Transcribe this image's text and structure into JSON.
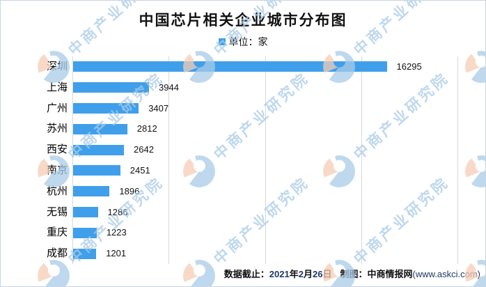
{
  "title": "中国芯片相关企业城市分布图",
  "legend": {
    "label": "单位：家"
  },
  "chart_data": {
    "type": "bar",
    "orientation": "horizontal",
    "title": "中国芯片相关企业城市分布图",
    "unit": "家",
    "categories": [
      "深圳",
      "上海",
      "广州",
      "苏州",
      "西安",
      "南京",
      "杭州",
      "无锡",
      "重庆",
      "成都"
    ],
    "values": [
      16295,
      3944,
      3407,
      2812,
      2642,
      2451,
      1896,
      1286,
      1223,
      1201
    ],
    "xlim": [
      0,
      20000
    ],
    "gridline_interval": 5000,
    "grid": true,
    "value_labels": true,
    "legend_position": "top",
    "bar_color": "#3F9FEA"
  },
  "footer": {
    "cutoff_label": "数据截止：",
    "cutoff_date_parts": [
      "2021",
      "年",
      "2",
      "月",
      "26",
      "日"
    ],
    "author_label": "制图：",
    "author_name": "中商情报网",
    "author_site": "(www.askci.com)"
  },
  "watermark": {
    "text": "中商产业研究院"
  },
  "colors": {
    "bar": "#3F9FEA",
    "navy": "#1F3864",
    "gridline": "#D8D8D8",
    "watermark_blue": "#A9CBE8",
    "watermark_peach": "#F6CDB6"
  }
}
